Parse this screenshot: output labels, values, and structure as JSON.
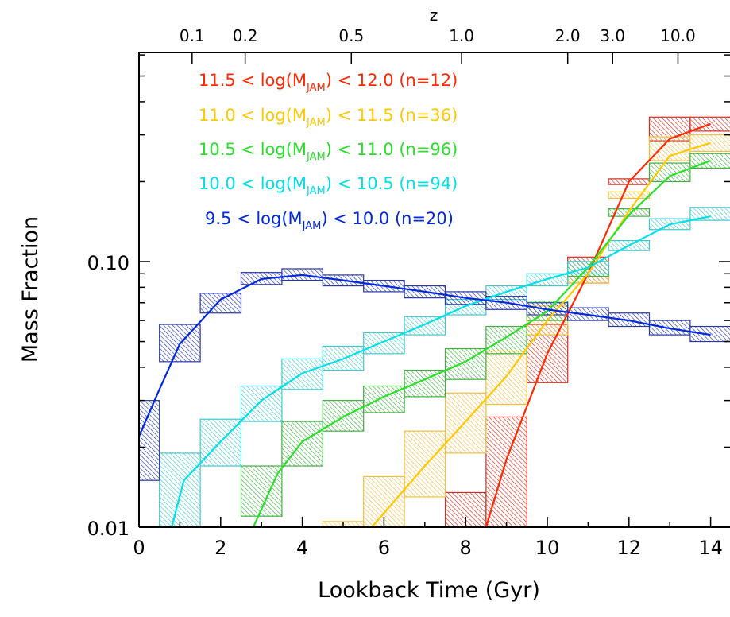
{
  "chart_data": {
    "type": "line",
    "xlabel": "Lookback Time (Gyr)",
    "ylabel": "Mass Fraction",
    "top_axis_label": "z",
    "xlim": [
      0,
      14.5
    ],
    "ylim": [
      0.01,
      0.4
    ],
    "y_scale": "log",
    "grid": false,
    "legend_position": "top-left",
    "x_ticks": [
      "0",
      "2",
      "4",
      "6",
      "8",
      "10",
      "12",
      "14"
    ],
    "y_ticks": [
      "0.10",
      "0.01"
    ],
    "top_ticks": [
      {
        "label": "0.1",
        "t": 1.3
      },
      {
        "label": "0.2",
        "t": 2.6
      },
      {
        "label": "0.5",
        "t": 5.2
      },
      {
        "label": "1.0",
        "t": 7.9
      },
      {
        "label": "2.0",
        "t": 10.5
      },
      {
        "label": "3.0",
        "t": 11.6
      },
      {
        "label": "10.0",
        "t": 13.2
      }
    ],
    "series": [
      {
        "legend": {
          "pre": "11.5 < log(M",
          "sub": "JAM",
          "post": ") < 12.0 (n=12)"
        },
        "color": "#ff2800",
        "hatch": "#d03020",
        "line": [
          [
            8.5,
            0.01
          ],
          [
            9.0,
            0.018
          ],
          [
            10.0,
            0.045
          ],
          [
            11.0,
            0.09
          ],
          [
            12.0,
            0.2
          ],
          [
            13.0,
            0.29
          ],
          [
            14.0,
            0.33
          ]
        ],
        "boxes": [
          [
            7.5,
            8.5,
            0.008,
            0.0135
          ],
          [
            8.5,
            9.5,
            0.008,
            0.026
          ],
          [
            9.5,
            10.5,
            0.035,
            0.058
          ],
          [
            10.5,
            11.5,
            0.083,
            0.104
          ],
          [
            11.5,
            12.5,
            0.195,
            0.205
          ],
          [
            12.5,
            13.5,
            0.285,
            0.35
          ],
          [
            13.5,
            14.5,
            0.31,
            0.35
          ]
        ]
      },
      {
        "legend": {
          "pre": "11.0 < log(M",
          "sub": "JAM",
          "post": ") < 11.5 (n=36)"
        },
        "color": "#ffc800",
        "hatch": "#f0c040",
        "line": [
          [
            5.7,
            0.01
          ],
          [
            7.0,
            0.017
          ],
          [
            8.0,
            0.025
          ],
          [
            9.0,
            0.037
          ],
          [
            10.0,
            0.06
          ],
          [
            11.0,
            0.09
          ],
          [
            12.0,
            0.155
          ],
          [
            13.0,
            0.25
          ],
          [
            14.0,
            0.28
          ]
        ],
        "boxes": [
          [
            4.5,
            5.5,
            0.008,
            0.0105
          ],
          [
            5.5,
            6.5,
            0.009,
            0.0155
          ],
          [
            6.5,
            7.5,
            0.013,
            0.023
          ],
          [
            7.5,
            8.5,
            0.019,
            0.032
          ],
          [
            8.5,
            9.5,
            0.029,
            0.046
          ],
          [
            9.5,
            10.5,
            0.053,
            0.068
          ],
          [
            10.5,
            11.5,
            0.083,
            0.1
          ],
          [
            11.5,
            12.5,
            0.173,
            0.183
          ],
          [
            12.5,
            13.5,
            0.24,
            0.295
          ],
          [
            13.5,
            14.5,
            0.26,
            0.3
          ]
        ]
      },
      {
        "legend": {
          "pre": "10.5 < log(M",
          "sub": "JAM",
          "post": ") < 11.0 (n=96)"
        },
        "color": "#28e028",
        "hatch": "#40b040",
        "line": [
          [
            2.8,
            0.01
          ],
          [
            3.4,
            0.016
          ],
          [
            4.0,
            0.021
          ],
          [
            5.0,
            0.026
          ],
          [
            6.0,
            0.031
          ],
          [
            7.0,
            0.036
          ],
          [
            8.0,
            0.042
          ],
          [
            9.0,
            0.052
          ],
          [
            10.0,
            0.065
          ],
          [
            11.0,
            0.095
          ],
          [
            12.0,
            0.15
          ],
          [
            13.0,
            0.21
          ],
          [
            14.0,
            0.24
          ]
        ],
        "boxes": [
          [
            2.5,
            3.5,
            0.011,
            0.017
          ],
          [
            3.5,
            4.5,
            0.017,
            0.025
          ],
          [
            4.5,
            5.5,
            0.023,
            0.03
          ],
          [
            5.5,
            6.5,
            0.027,
            0.034
          ],
          [
            6.5,
            7.5,
            0.031,
            0.039
          ],
          [
            7.5,
            8.5,
            0.036,
            0.047
          ],
          [
            8.5,
            9.5,
            0.045,
            0.057
          ],
          [
            9.5,
            10.5,
            0.06,
            0.071
          ],
          [
            10.5,
            11.5,
            0.088,
            0.1
          ],
          [
            11.5,
            12.5,
            0.148,
            0.158
          ],
          [
            12.5,
            13.5,
            0.2,
            0.235
          ],
          [
            13.5,
            14.5,
            0.225,
            0.255
          ]
        ]
      },
      {
        "legend": {
          "pre": "10.0 < log(M",
          "sub": "JAM",
          "post": ") < 10.5 (n=94)"
        },
        "color": "#00e0e8",
        "hatch": "#40c8d0",
        "line": [
          [
            0.8,
            0.01
          ],
          [
            1.1,
            0.015
          ],
          [
            2.0,
            0.021
          ],
          [
            3.0,
            0.03
          ],
          [
            4.0,
            0.038
          ],
          [
            5.0,
            0.043
          ],
          [
            6.0,
            0.05
          ],
          [
            7.0,
            0.058
          ],
          [
            8.0,
            0.068
          ],
          [
            9.0,
            0.077
          ],
          [
            10.0,
            0.086
          ],
          [
            11.0,
            0.095
          ],
          [
            12.0,
            0.115
          ],
          [
            13.0,
            0.138
          ],
          [
            14.0,
            0.148
          ]
        ],
        "boxes": [
          [
            0.5,
            1.5,
            0.008,
            0.019
          ],
          [
            1.5,
            2.5,
            0.017,
            0.0255
          ],
          [
            2.5,
            3.5,
            0.025,
            0.034
          ],
          [
            3.5,
            4.5,
            0.033,
            0.043
          ],
          [
            4.5,
            5.5,
            0.039,
            0.048
          ],
          [
            5.5,
            6.5,
            0.045,
            0.054
          ],
          [
            6.5,
            7.5,
            0.053,
            0.062
          ],
          [
            7.5,
            8.5,
            0.063,
            0.072
          ],
          [
            8.5,
            9.5,
            0.072,
            0.081
          ],
          [
            9.5,
            10.5,
            0.081,
            0.09
          ],
          [
            10.5,
            11.5,
            0.09,
            0.1
          ],
          [
            11.5,
            12.5,
            0.11,
            0.12
          ],
          [
            12.5,
            13.5,
            0.132,
            0.145
          ],
          [
            13.5,
            14.5,
            0.143,
            0.16
          ]
        ]
      },
      {
        "legend": {
          "pre": "9.5 < log(M",
          "sub": "JAM",
          "post": ") < 10.0 (n=20)"
        },
        "color": "#0028e0",
        "hatch": "#2838a8",
        "line": [
          [
            0.0,
            0.022
          ],
          [
            0.5,
            0.033
          ],
          [
            1.0,
            0.049
          ],
          [
            2.0,
            0.072
          ],
          [
            3.0,
            0.086
          ],
          [
            4.0,
            0.089
          ],
          [
            5.0,
            0.085
          ],
          [
            6.0,
            0.081
          ],
          [
            7.0,
            0.077
          ],
          [
            8.0,
            0.073
          ],
          [
            9.0,
            0.07
          ],
          [
            10.0,
            0.066
          ],
          [
            11.0,
            0.063
          ],
          [
            12.0,
            0.06
          ],
          [
            13.0,
            0.056
          ],
          [
            14.0,
            0.053
          ]
        ],
        "boxes": [
          [
            0.0,
            0.5,
            0.015,
            0.03
          ],
          [
            0.5,
            1.5,
            0.042,
            0.058
          ],
          [
            1.5,
            2.5,
            0.064,
            0.076
          ],
          [
            2.5,
            3.5,
            0.082,
            0.091
          ],
          [
            3.5,
            4.5,
            0.085,
            0.094
          ],
          [
            4.5,
            5.5,
            0.081,
            0.089
          ],
          [
            5.5,
            6.5,
            0.077,
            0.085
          ],
          [
            6.5,
            7.5,
            0.073,
            0.081
          ],
          [
            7.5,
            8.5,
            0.069,
            0.077
          ],
          [
            8.5,
            9.5,
            0.066,
            0.074
          ],
          [
            9.5,
            10.5,
            0.063,
            0.07
          ],
          [
            10.5,
            11.5,
            0.06,
            0.067
          ],
          [
            11.5,
            12.5,
            0.057,
            0.064
          ],
          [
            12.5,
            13.5,
            0.053,
            0.06
          ],
          [
            13.5,
            14.5,
            0.05,
            0.057
          ]
        ]
      }
    ]
  }
}
